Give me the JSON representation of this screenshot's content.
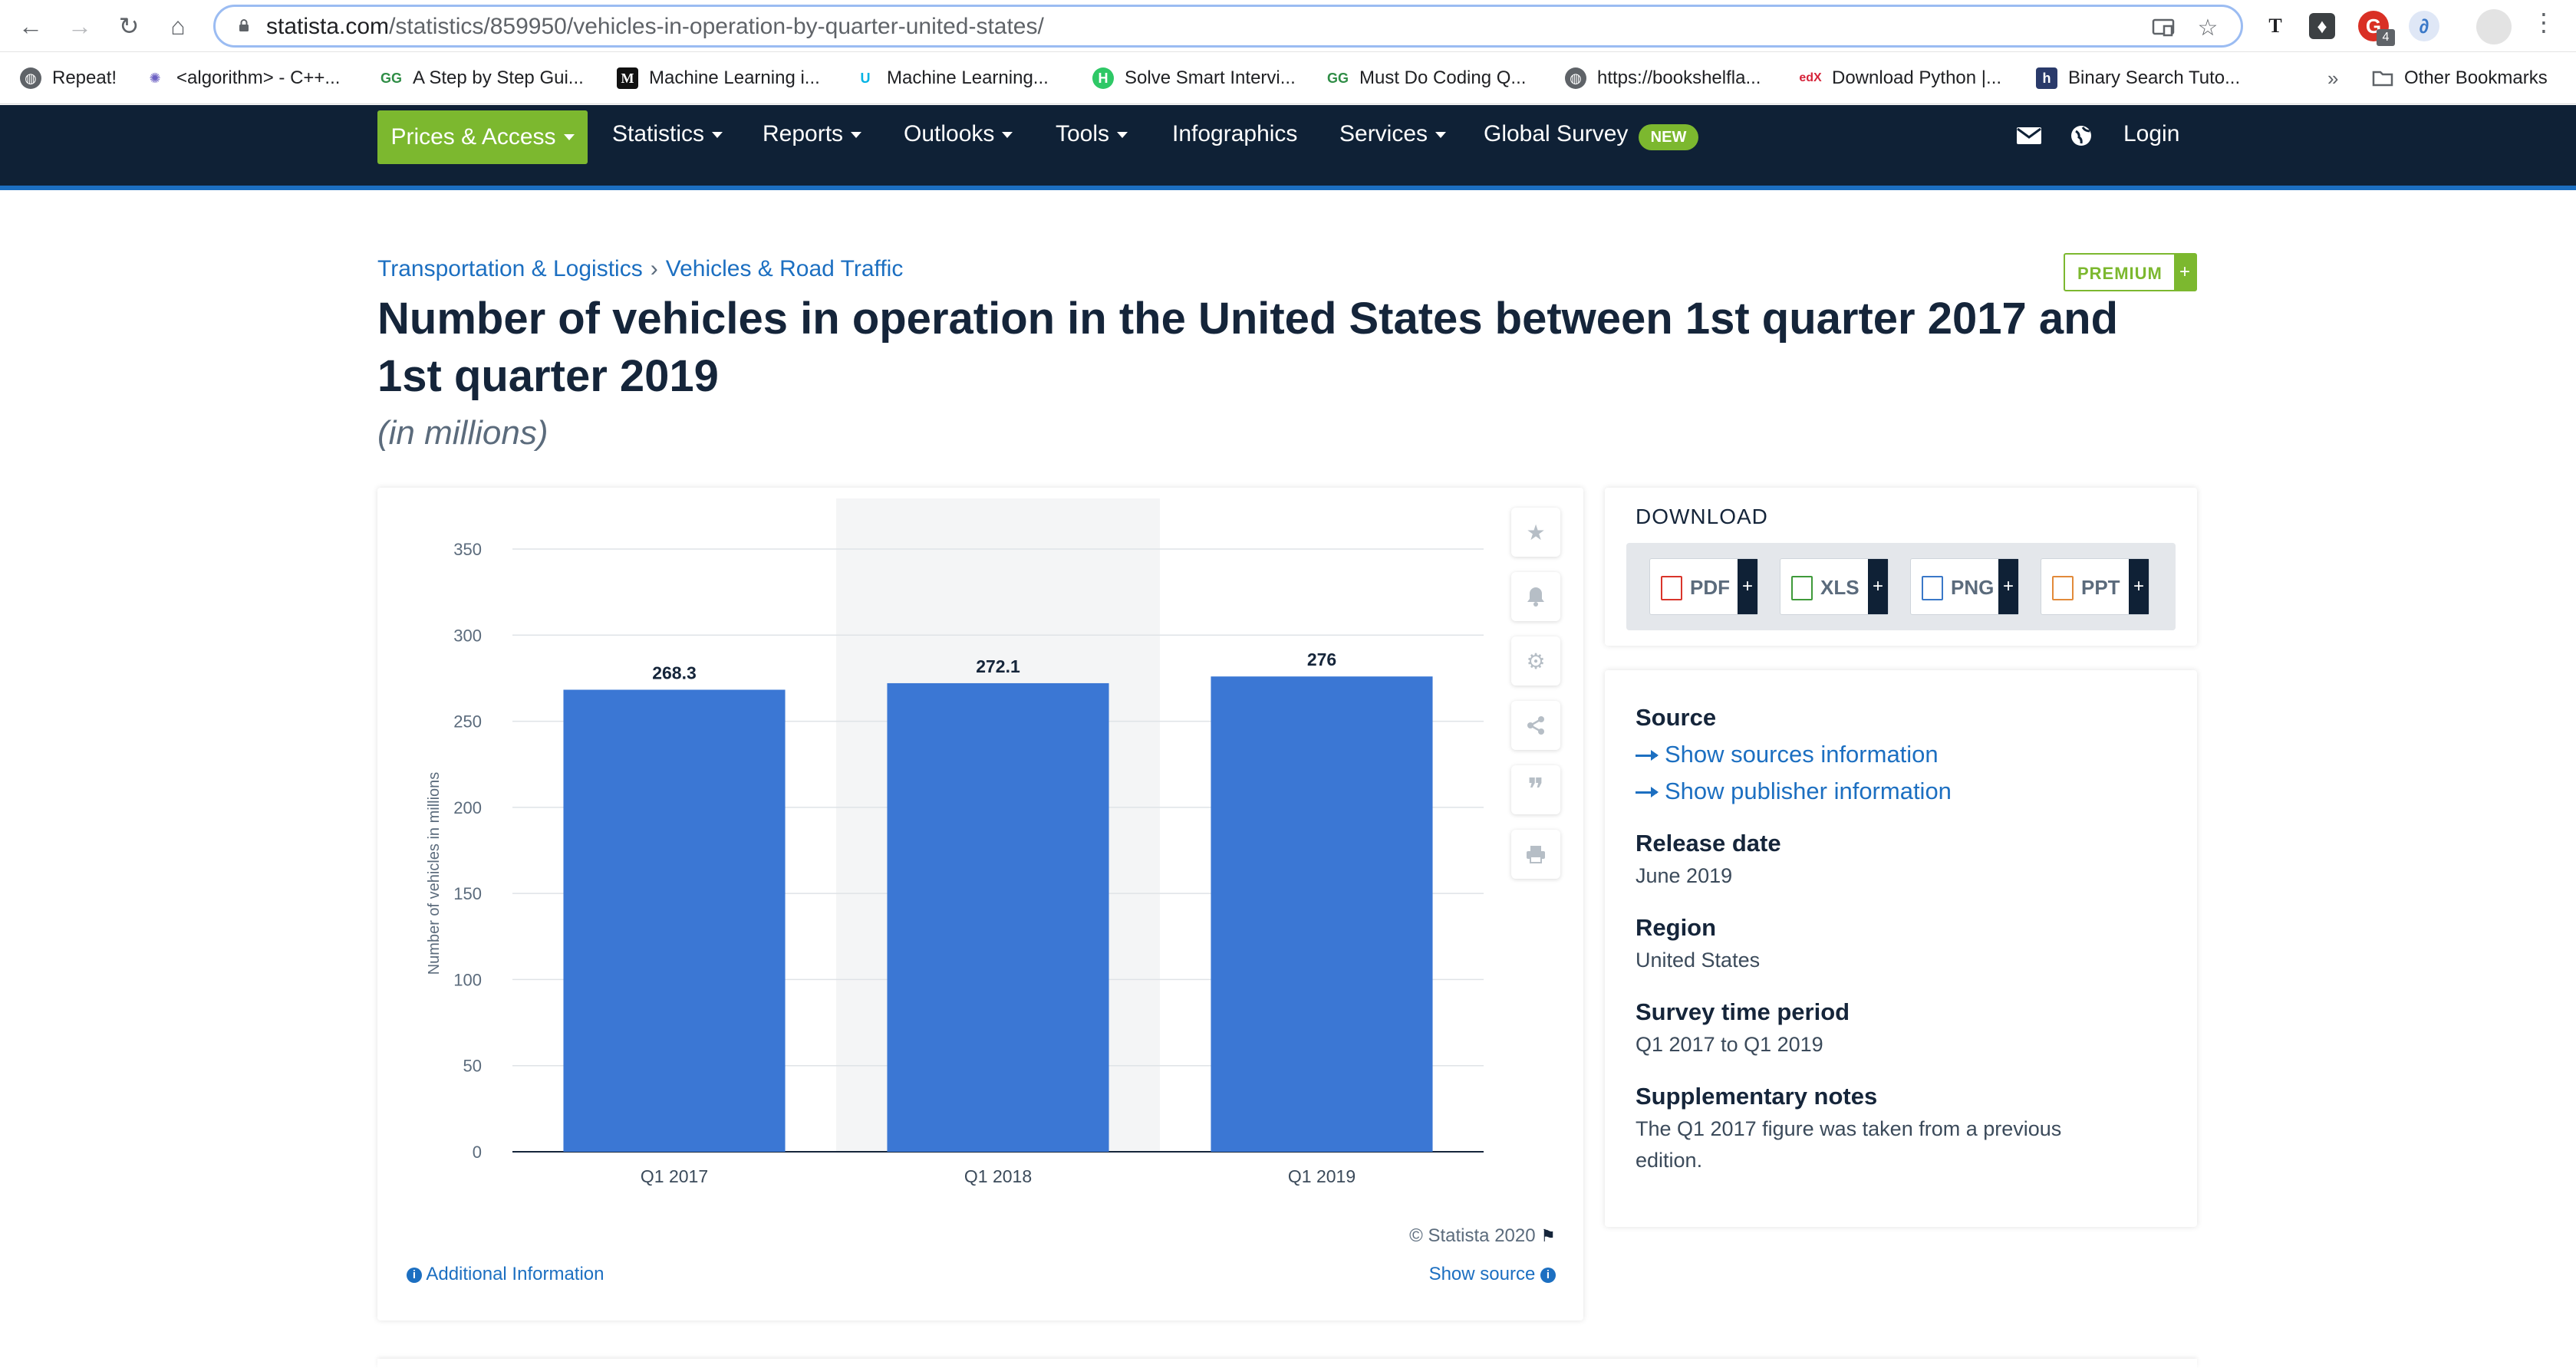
{
  "browser": {
    "url_host": "statista.com",
    "url_path": "/statistics/859950/vehicles-in-operation-by-quarter-united-states/",
    "ext_badge": "4",
    "bookmarks": [
      {
        "label": "Repeat!",
        "icon": "globe-icon"
      },
      {
        "label": "<algorithm> - C++...",
        "icon": "cpp-icon"
      },
      {
        "label": "A Step by Step Gui...",
        "icon": "gfg-icon"
      },
      {
        "label": "Machine Learning i...",
        "icon": "medium-icon"
      },
      {
        "label": "Machine Learning...",
        "icon": "udacity-icon"
      },
      {
        "label": "Solve Smart Intervi...",
        "icon": "h-icon"
      },
      {
        "label": "Must Do Coding Q...",
        "icon": "gfg-icon"
      },
      {
        "label": "https://bookshelfla...",
        "icon": "globe-icon"
      },
      {
        "label": "Download Python |...",
        "icon": "edx-icon"
      },
      {
        "label": "Binary Search Tuto...",
        "icon": "hackerearth-icon"
      }
    ],
    "more_bookmarks": "»",
    "other_bookmarks": "Other Bookmarks"
  },
  "nav": {
    "prices": "Prices & Access",
    "items": [
      "Statistics",
      "Reports",
      "Outlooks",
      "Tools",
      "Infographics",
      "Services",
      "Global Survey"
    ],
    "new_badge": "NEW",
    "login": "Login"
  },
  "page": {
    "breadcrumb": [
      "Transportation & Logistics",
      "Vehicles & Road Traffic"
    ],
    "breadcrumb_sep": "›",
    "premium": "PREMIUM",
    "premium_plus": "+",
    "title": "Number of vehicles in operation in the United States between 1st quarter 2017 and 1st quarter 2019",
    "subtitle": "(in millions)"
  },
  "chart_data": {
    "type": "bar",
    "categories": [
      "Q1 2017",
      "Q1 2018",
      "Q1 2019"
    ],
    "values": [
      268.3,
      272.1,
      276
    ],
    "value_labels": [
      "268.3",
      "272.1",
      "276"
    ],
    "ylabel": "Number of vehicles in millions",
    "ylim": [
      0,
      350
    ],
    "yticks": [
      0,
      50,
      100,
      150,
      200,
      250,
      300,
      350
    ],
    "grid": true,
    "bar_color": "#3b77d4",
    "highlight_category": "Q1 2018"
  },
  "chart_footer": {
    "copyright": "© Statista 2020",
    "additional_info": "Additional Information",
    "show_source": "Show source"
  },
  "side_tools": [
    "star-icon",
    "bell-icon",
    "gear-icon",
    "share-icon",
    "quote-icon",
    "print-icon"
  ],
  "download": {
    "title": "DOWNLOAD",
    "buttons": [
      {
        "label": "PDF",
        "color": "#d9352b"
      },
      {
        "label": "XLS",
        "color": "#3f9a3a"
      },
      {
        "label": "PNG",
        "color": "#3a78c8"
      },
      {
        "label": "PPT",
        "color": "#e28a3a"
      }
    ],
    "plus": "+"
  },
  "source": {
    "source_h": "Source",
    "link1": "Show sources information",
    "link2": "Show publisher information",
    "release_h": "Release date",
    "release_v": "June 2019",
    "region_h": "Region",
    "region_v": "United States",
    "survey_h": "Survey time period",
    "survey_v": "Q1 2017 to Q1 2019",
    "notes_h": "Supplementary notes",
    "notes_v": "The Q1 2017 figure was taken from a previous edition."
  }
}
